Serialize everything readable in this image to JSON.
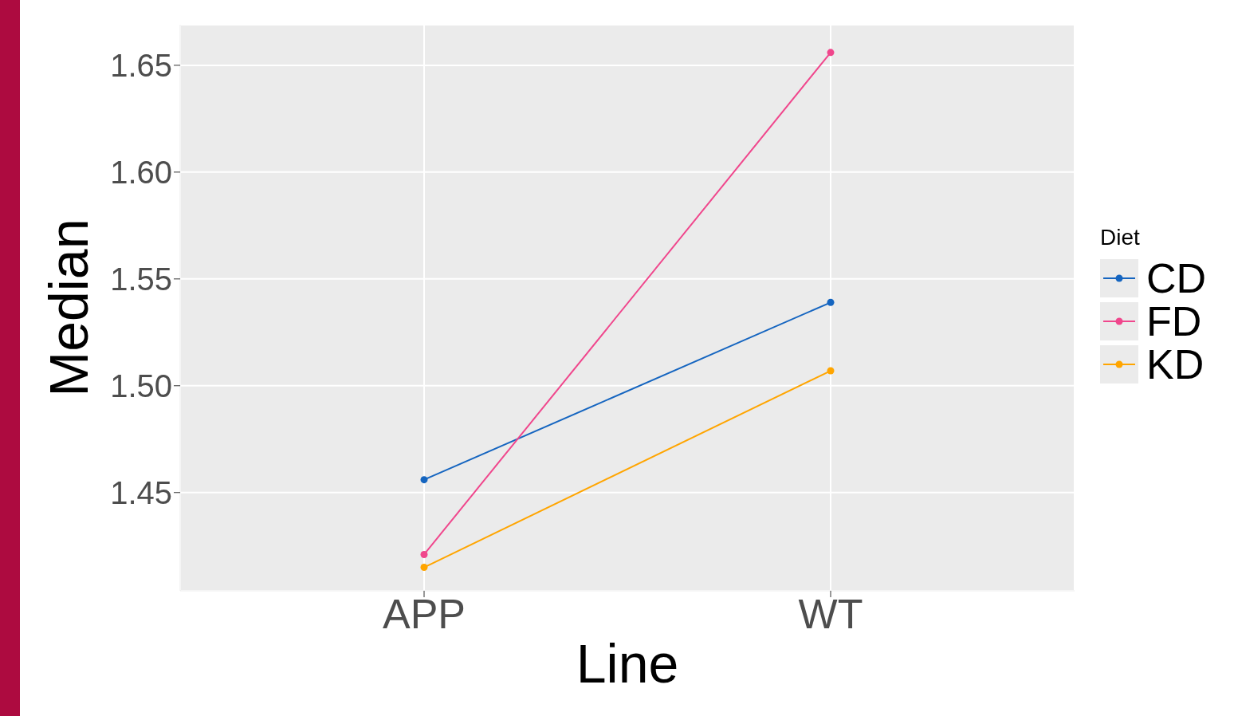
{
  "chart_data": {
    "type": "line",
    "xlabel": "Line",
    "ylabel": "Median",
    "legend_title": "Diet",
    "categories": [
      "APP",
      "WT"
    ],
    "series": [
      {
        "name": "CD",
        "color": "#1565c0",
        "values": [
          1.456,
          1.539
        ]
      },
      {
        "name": "FD",
        "color": "#f0468c",
        "values": [
          1.421,
          1.656
        ]
      },
      {
        "name": "KD",
        "color": "#ffa500",
        "values": [
          1.415,
          1.507
        ]
      }
    ],
    "ylim": [
      1.404,
      1.669
    ],
    "yticks": [
      {
        "value": 1.45,
        "label": "1.45"
      },
      {
        "value": 1.5,
        "label": "1.50"
      },
      {
        "value": 1.55,
        "label": "1.55"
      },
      {
        "value": 1.6,
        "label": "1.60"
      },
      {
        "value": 1.65,
        "label": "1.65"
      }
    ],
    "grid": true,
    "legend": "right",
    "marker": "circle",
    "line_style": "solid"
  }
}
